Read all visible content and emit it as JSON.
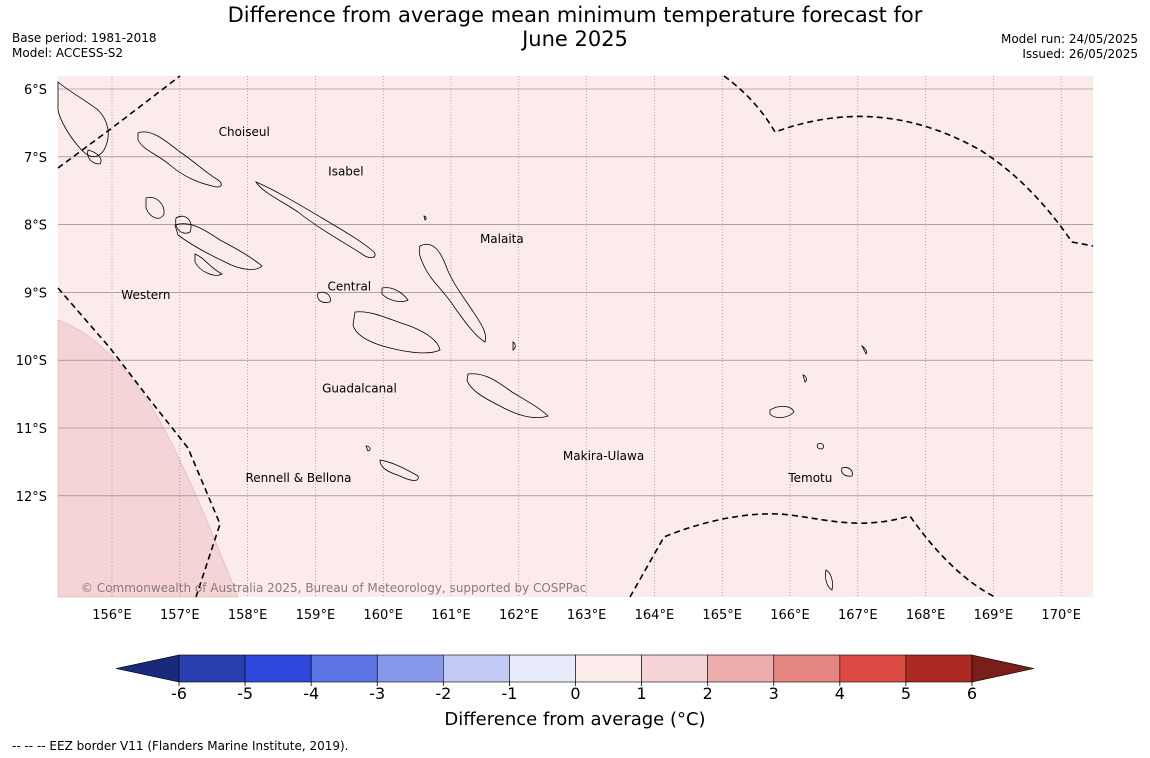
{
  "title_line1": "Difference from average mean minimum temperature forecast for",
  "title_line2": "June 2025",
  "base_period": "Base period: 1981-2018",
  "model": "Model: ACCESS-S2",
  "model_run": "Model run: 24/05/2025",
  "issued": "Issued: 26/05/2025",
  "latitude_labels": [
    "6°S",
    "7°S",
    "8°S",
    "9°S",
    "10°S",
    "11°S",
    "12°S"
  ],
  "longitude_labels": [
    "156°E",
    "157°E",
    "158°E",
    "159°E",
    "160°E",
    "161°E",
    "162°E",
    "163°E",
    "164°E",
    "165°E",
    "166°E",
    "167°E",
    "168°E",
    "169°E",
    "170°E"
  ],
  "region_labels": [
    "Choiseul",
    "Isabel",
    "Malaita",
    "Western",
    "Central",
    "Guadalcanal",
    "Makira-Ulawa",
    "Rennell & Bellona",
    "Temotu"
  ],
  "copyright": "© Commonwealth of Australia 2025, Bureau of Meteorology, supported by COSPPac",
  "colorbar": {
    "ticks": [
      "-6",
      "-5",
      "-4",
      "-3",
      "-2",
      "-1",
      "0",
      "1",
      "2",
      "3",
      "4",
      "5",
      "6"
    ],
    "colors": [
      "#2a3fae",
      "#3048de",
      "#5c73e4",
      "#8797ea",
      "#c1c9f4",
      "#e8ebfb",
      "#fcebeb",
      "#f4d4d4",
      "#edadac",
      "#e5857f",
      "#dc4b43",
      "#ad2a24"
    ],
    "under_color": "#1a2a7a",
    "over_color": "#7a1e1a",
    "label": "Difference from average (°C)"
  },
  "legend_note": "--  --  -- EEZ border V11 (Flanders Marine Institute, 2019).",
  "fill_colors": {
    "main": "#fcebeb",
    "warm": "#f4d4d4"
  }
}
